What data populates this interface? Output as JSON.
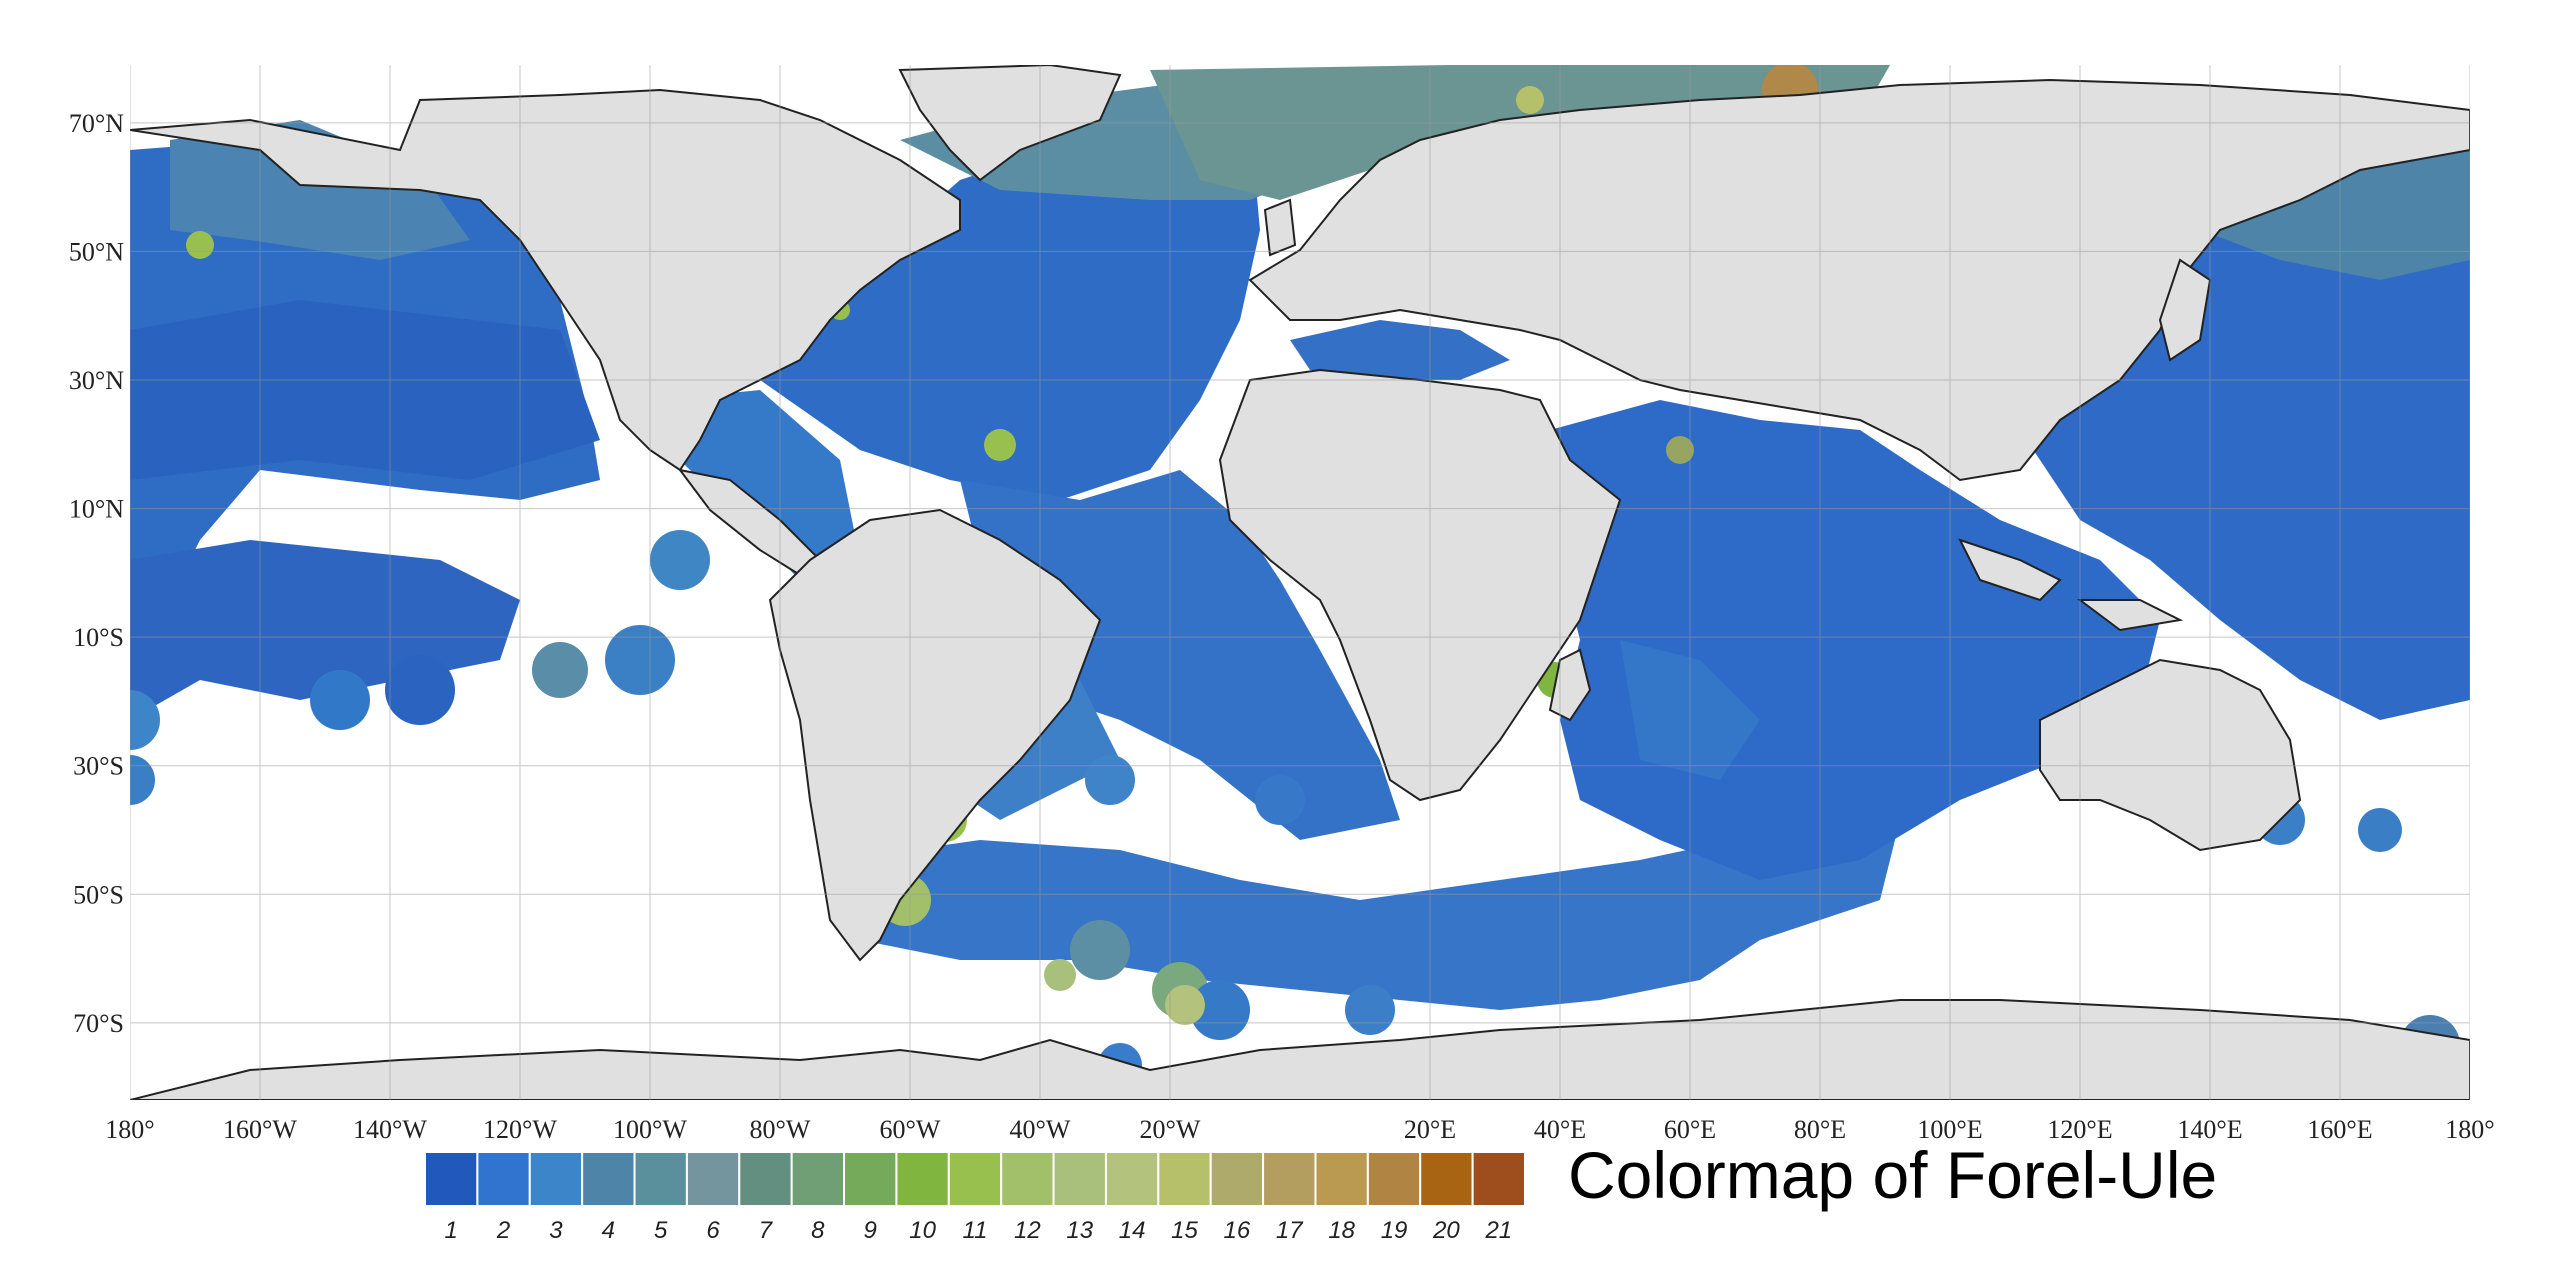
{
  "map": {
    "lat_ticks": [
      "70°N",
      "50°N",
      "30°N",
      "10°N",
      "10°S",
      "30°S",
      "50°S",
      "70°S"
    ],
    "lat_values": [
      70,
      50,
      30,
      10,
      -10,
      -30,
      -50,
      -70
    ],
    "lon_ticks": [
      "180°",
      "160°W",
      "140°W",
      "120°W",
      "100°W",
      "80°W",
      "60°W",
      "40°W",
      "20°W",
      "20°E",
      "40°E",
      "60°E",
      "80°E",
      "100°E",
      "120°E",
      "140°E",
      "160°E",
      "180°"
    ],
    "lon_values": [
      -180,
      -160,
      -140,
      -120,
      -100,
      -80,
      -60,
      -40,
      -20,
      20,
      40,
      60,
      80,
      100,
      120,
      140,
      160,
      180
    ],
    "lat_range": [
      -82,
      79
    ],
    "lon_range": [
      -180,
      180
    ],
    "land_color": "#e0e0e0",
    "ocean_nodata_color": "#ffffff",
    "grid": true
  },
  "legend": {
    "title": "Colormap of Forel-Ule",
    "classes": [
      "1",
      "2",
      "3",
      "4",
      "5",
      "6",
      "7",
      "8",
      "9",
      "10",
      "11",
      "12",
      "13",
      "14",
      "15",
      "16",
      "17",
      "18",
      "19",
      "20",
      "21"
    ],
    "colors": [
      "#2158bc",
      "#3174d0",
      "#3d85c9",
      "#4d84a8",
      "#59909b",
      "#75959e",
      "#638f80",
      "#709e75",
      "#76aa5b",
      "#80b540",
      "#98c04e",
      "#a2c06a",
      "#a9c07d",
      "#b3c27c",
      "#b6bf6a",
      "#adaa6c",
      "#b39e5f",
      "#b99a50",
      "#b08544",
      "#a86412",
      "#9e4e1c"
    ]
  }
}
